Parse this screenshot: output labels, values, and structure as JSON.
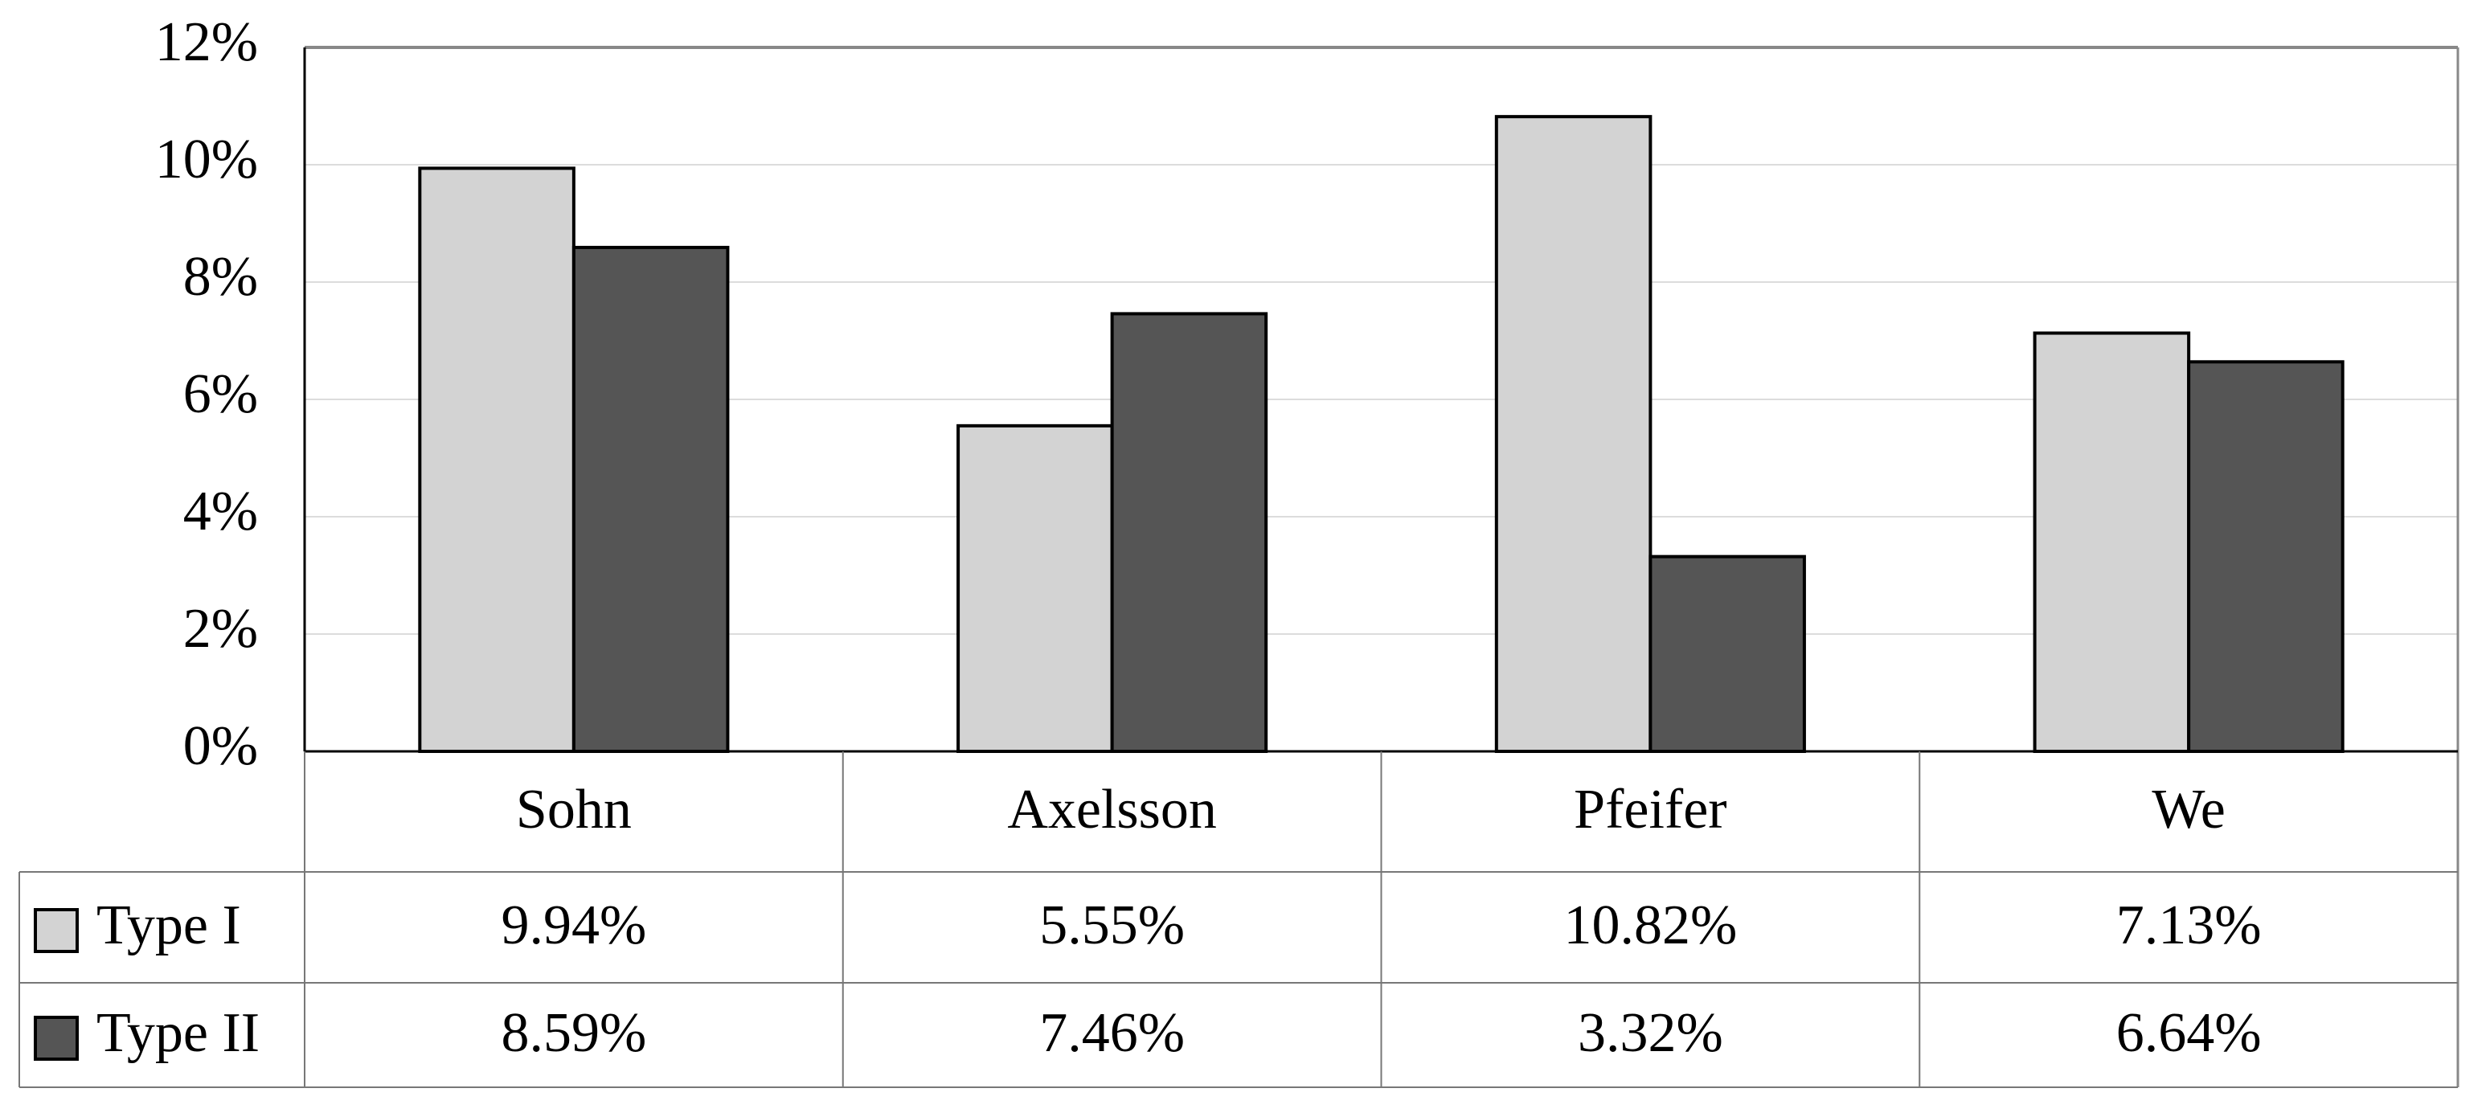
{
  "chart_data": {
    "type": "bar",
    "categories": [
      "Sohn",
      "Axelsson",
      "Pfeifer",
      "We"
    ],
    "series": [
      {
        "name": "Type I",
        "color": "#d3d3d3",
        "values": [
          9.94,
          5.55,
          10.82,
          7.13
        ],
        "value_labels": [
          "9.94%",
          "5.55%",
          "10.82%",
          "7.13%"
        ]
      },
      {
        "name": "Type II",
        "color": "#555555",
        "values": [
          8.59,
          7.46,
          3.32,
          6.64
        ],
        "value_labels": [
          "8.59%",
          "7.46%",
          "3.32%",
          "6.64%"
        ]
      }
    ],
    "ylim": [
      0,
      12
    ],
    "yticks": [
      {
        "value": 0,
        "label": "0%"
      },
      {
        "value": 2,
        "label": "2%"
      },
      {
        "value": 4,
        "label": "4%"
      },
      {
        "value": 6,
        "label": "6%"
      },
      {
        "value": 8,
        "label": "8%"
      },
      {
        "value": 10,
        "label": "10%"
      },
      {
        "value": 12,
        "label": "12%"
      }
    ],
    "grid": true
  }
}
